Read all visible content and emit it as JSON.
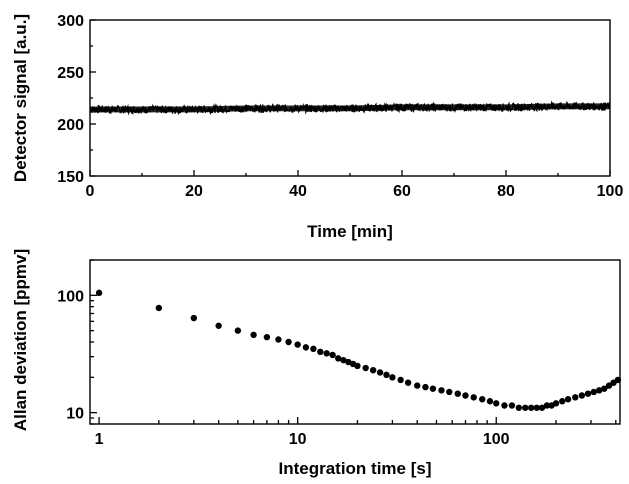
{
  "chart_data": [
    {
      "type": "line",
      "xlabel": "Time [min]",
      "ylabel": "Detector signal [a.u.]",
      "xlim": [
        0,
        100
      ],
      "ylim": [
        150,
        300
      ],
      "x_ticks": [
        0,
        20,
        40,
        60,
        80,
        100
      ],
      "y_ticks": [
        150,
        200,
        250,
        300
      ],
      "x_tick_labels": [
        "0",
        "20",
        "40",
        "60",
        "80",
        "100"
      ],
      "y_tick_labels": [
        "150",
        "200",
        "250",
        "300"
      ],
      "grid": false,
      "series": [
        {
          "x": [
            0,
            10,
            20,
            30,
            40,
            50,
            60,
            70,
            80,
            90,
            100
          ],
          "y": [
            214,
            214,
            214,
            215,
            215,
            215,
            216,
            216,
            216,
            217,
            217
          ],
          "noise_band": 7
        }
      ]
    },
    {
      "type": "scatter",
      "xlabel": "Integration time [s]",
      "ylabel": "Allan deviation [ppmv]",
      "x_scale": "log",
      "y_scale": "log",
      "xlim": [
        0.9,
        420
      ],
      "ylim": [
        8,
        200
      ],
      "x_ticks": [
        1,
        10,
        100
      ],
      "y_ticks": [
        10,
        100
      ],
      "x_tick_labels": [
        "1",
        "10",
        "100"
      ],
      "y_tick_labels": [
        "10",
        "100"
      ],
      "grid": false,
      "series": [
        {
          "x": [
            1,
            2,
            3,
            4,
            5,
            6,
            7,
            8,
            9,
            10,
            11,
            12,
            13,
            14,
            15,
            16,
            17,
            18,
            19,
            20,
            22,
            24,
            26,
            28,
            30,
            33,
            36,
            40,
            44,
            48,
            53,
            58,
            64,
            70,
            77,
            85,
            93,
            100,
            110,
            120,
            130,
            140,
            150,
            160,
            170,
            180,
            190,
            200,
            215,
            230,
            250,
            270,
            290,
            310,
            330,
            350,
            370,
            390,
            410
          ],
          "y": [
            105,
            78,
            64,
            55,
            50,
            46,
            44,
            42,
            40,
            38,
            36,
            35,
            33,
            32,
            31,
            29,
            28,
            27,
            26,
            25,
            24,
            23,
            22,
            21,
            20,
            19,
            18,
            17,
            16.5,
            16,
            15.5,
            15,
            14.5,
            14,
            13.5,
            13,
            12.5,
            12,
            11.5,
            11.5,
            11,
            11,
            11,
            11,
            11,
            11.5,
            11.5,
            12,
            12.5,
            13,
            13.5,
            14,
            14.5,
            15,
            15.5,
            16,
            17,
            18,
            19
          ]
        }
      ]
    }
  ]
}
